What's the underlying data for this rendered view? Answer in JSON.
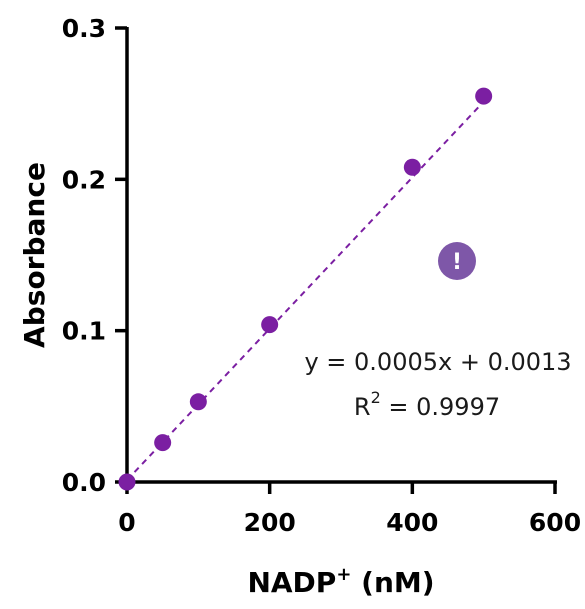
{
  "chart_data": {
    "type": "scatter",
    "title": "",
    "xlabel": "NADP",
    "xlabel_superscript": "+",
    "xlabel_unit": " (nM)",
    "ylabel": "Absorbance",
    "xlim": [
      0,
      600
    ],
    "ylim": [
      0,
      0.3
    ],
    "xticks": [
      0,
      200,
      400,
      600
    ],
    "xtick_labels": [
      "0",
      "200",
      "400",
      "600"
    ],
    "yticks": [
      0,
      0.1,
      0.2,
      0.3
    ],
    "ytick_labels": [
      "0.0",
      "0.1",
      "0.2",
      "0.3"
    ],
    "grid": false,
    "series": [
      {
        "x": [
          0,
          50,
          100,
          200,
          400,
          500
        ],
        "y": [
          0.0,
          0.026,
          0.053,
          0.104,
          0.208,
          0.255
        ],
        "color": "#7b1fa2"
      }
    ],
    "fit": {
      "slope": 0.0005,
      "intercept": 0.0013,
      "x_range": [
        0,
        500
      ],
      "style": "dashed",
      "color": "#7b1fa2"
    },
    "equation": {
      "line1": "y = 0.0005x + 0.0013",
      "r_prefix": "R",
      "r_superscript": "2",
      "r_value": " = 0.9997"
    },
    "badge": {
      "symbol": "!",
      "color": "#7e57a8",
      "icon": "exclamation-icon"
    }
  }
}
